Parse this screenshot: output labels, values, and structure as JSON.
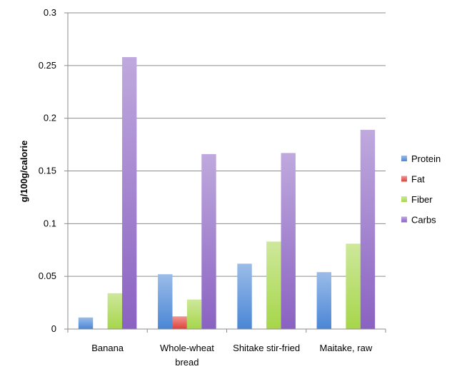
{
  "chart_data": {
    "type": "bar",
    "title": "",
    "xlabel": "",
    "ylabel": "g/100g/calorie",
    "ylim": [
      0,
      0.3
    ],
    "yticks": [
      "0",
      "0.05",
      "0.1",
      "0.15",
      "0.2",
      "0.25",
      "0.3"
    ],
    "grid": true,
    "legend_position": "right",
    "categories": [
      [
        "Banana"
      ],
      [
        "Whole-wheat",
        "bread"
      ],
      [
        "Shitake stir-fried"
      ],
      [
        "Maitake, raw"
      ]
    ],
    "series": [
      {
        "name": "Protein",
        "color": "#4a86d6",
        "values": [
          0.011,
          0.052,
          0.062,
          0.054
        ]
      },
      {
        "name": "Fat",
        "color": "#e0403b",
        "values": [
          0.0,
          0.012,
          0.0,
          0.0
        ]
      },
      {
        "name": "Fiber",
        "color": "#a6d64a",
        "values": [
          0.034,
          0.028,
          0.083,
          0.081
        ]
      },
      {
        "name": "Carbs",
        "color": "#8a62c2",
        "values": [
          0.258,
          0.166,
          0.167,
          0.189
        ]
      }
    ]
  }
}
